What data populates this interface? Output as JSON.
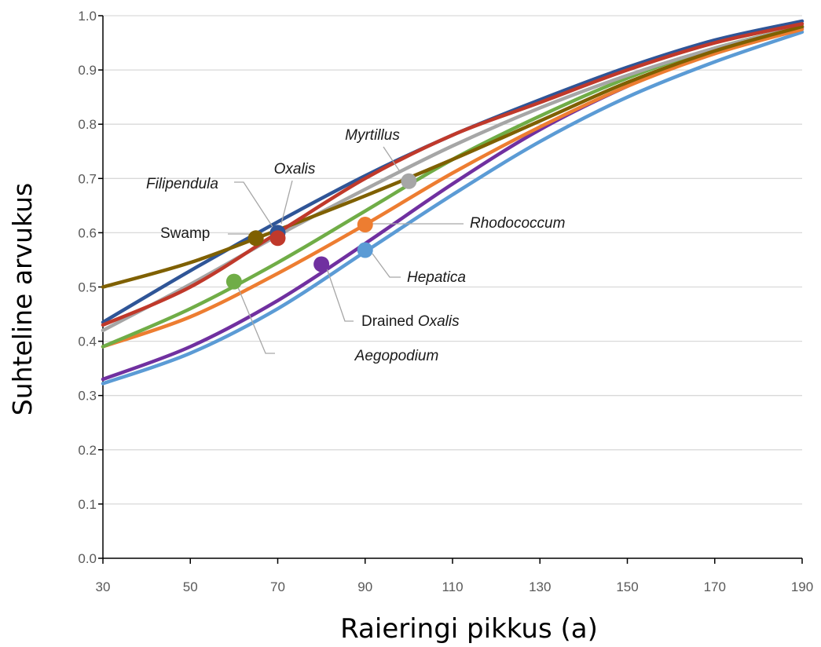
{
  "chart_data": {
    "type": "line",
    "title": "",
    "xlabel": "Raieringi pikkus (a)",
    "ylabel": "Suhteline arvukus",
    "xlim": [
      30,
      190
    ],
    "ylim": [
      0,
      1
    ],
    "x_ticks": [
      "30",
      "50",
      "70",
      "90",
      "110",
      "130",
      "150",
      "170",
      "190"
    ],
    "y_ticks": [
      "0.0",
      "0.1",
      "0.2",
      "0.3",
      "0.4",
      "0.5",
      "0.6",
      "0.7",
      "0.8",
      "0.9",
      "1.0"
    ],
    "grid": "horizontal",
    "x": [
      30,
      50,
      70,
      90,
      110,
      130,
      150,
      170,
      190
    ],
    "series": [
      {
        "name": "Swamp",
        "italic": false,
        "prefix": "",
        "color": "#7f6000",
        "values": [
          0.5,
          0.545,
          0.605,
          0.668,
          0.735,
          0.806,
          0.877,
          0.935,
          0.98
        ],
        "marker": {
          "x": 65,
          "y": 0.59
        }
      },
      {
        "name": "Oxalis",
        "italic": true,
        "prefix": "",
        "color": "#2f5597",
        "values": [
          0.435,
          0.53,
          0.62,
          0.705,
          0.78,
          0.845,
          0.905,
          0.955,
          0.99
        ],
        "marker": {
          "x": 70,
          "y": 0.6
        }
      },
      {
        "name": "Filipendula",
        "italic": true,
        "prefix": "",
        "color": "#c0392b",
        "values": [
          0.43,
          0.5,
          0.6,
          0.7,
          0.78,
          0.84,
          0.9,
          0.95,
          0.985
        ],
        "marker": {
          "x": 70,
          "y": 0.59
        }
      },
      {
        "name": "Myrtillus",
        "italic": true,
        "prefix": "",
        "color": "#a6a6a6",
        "values": [
          0.42,
          0.505,
          0.595,
          0.68,
          0.76,
          0.83,
          0.89,
          0.94,
          0.98
        ],
        "marker": {
          "x": 100,
          "y": 0.695
        }
      },
      {
        "name": "Aegopodium",
        "italic": true,
        "prefix": "",
        "color": "#70ad47",
        "values": [
          0.39,
          0.46,
          0.545,
          0.64,
          0.735,
          0.815,
          0.885,
          0.94,
          0.98
        ],
        "marker": {
          "x": 60,
          "y": 0.51
        }
      },
      {
        "name": "Rhodococcum",
        "italic": true,
        "prefix": "",
        "color": "#ed7d31",
        "values": [
          0.39,
          0.445,
          0.525,
          0.615,
          0.71,
          0.795,
          0.87,
          0.93,
          0.975
        ],
        "marker": {
          "x": 90,
          "y": 0.615
        }
      },
      {
        "name": "Oxalis",
        "italic": true,
        "prefix": "Drained ",
        "color": "#7030a0",
        "values": [
          0.33,
          0.39,
          0.475,
          0.58,
          0.69,
          0.79,
          0.87,
          0.935,
          0.978
        ],
        "marker": {
          "x": 80,
          "y": 0.542
        }
      },
      {
        "name": "Hepatica",
        "italic": true,
        "prefix": "",
        "color": "#5b9bd5",
        "values": [
          0.322,
          0.378,
          0.46,
          0.565,
          0.67,
          0.768,
          0.85,
          0.915,
          0.97
        ],
        "marker": {
          "x": 90,
          "y": 0.568
        }
      }
    ]
  }
}
